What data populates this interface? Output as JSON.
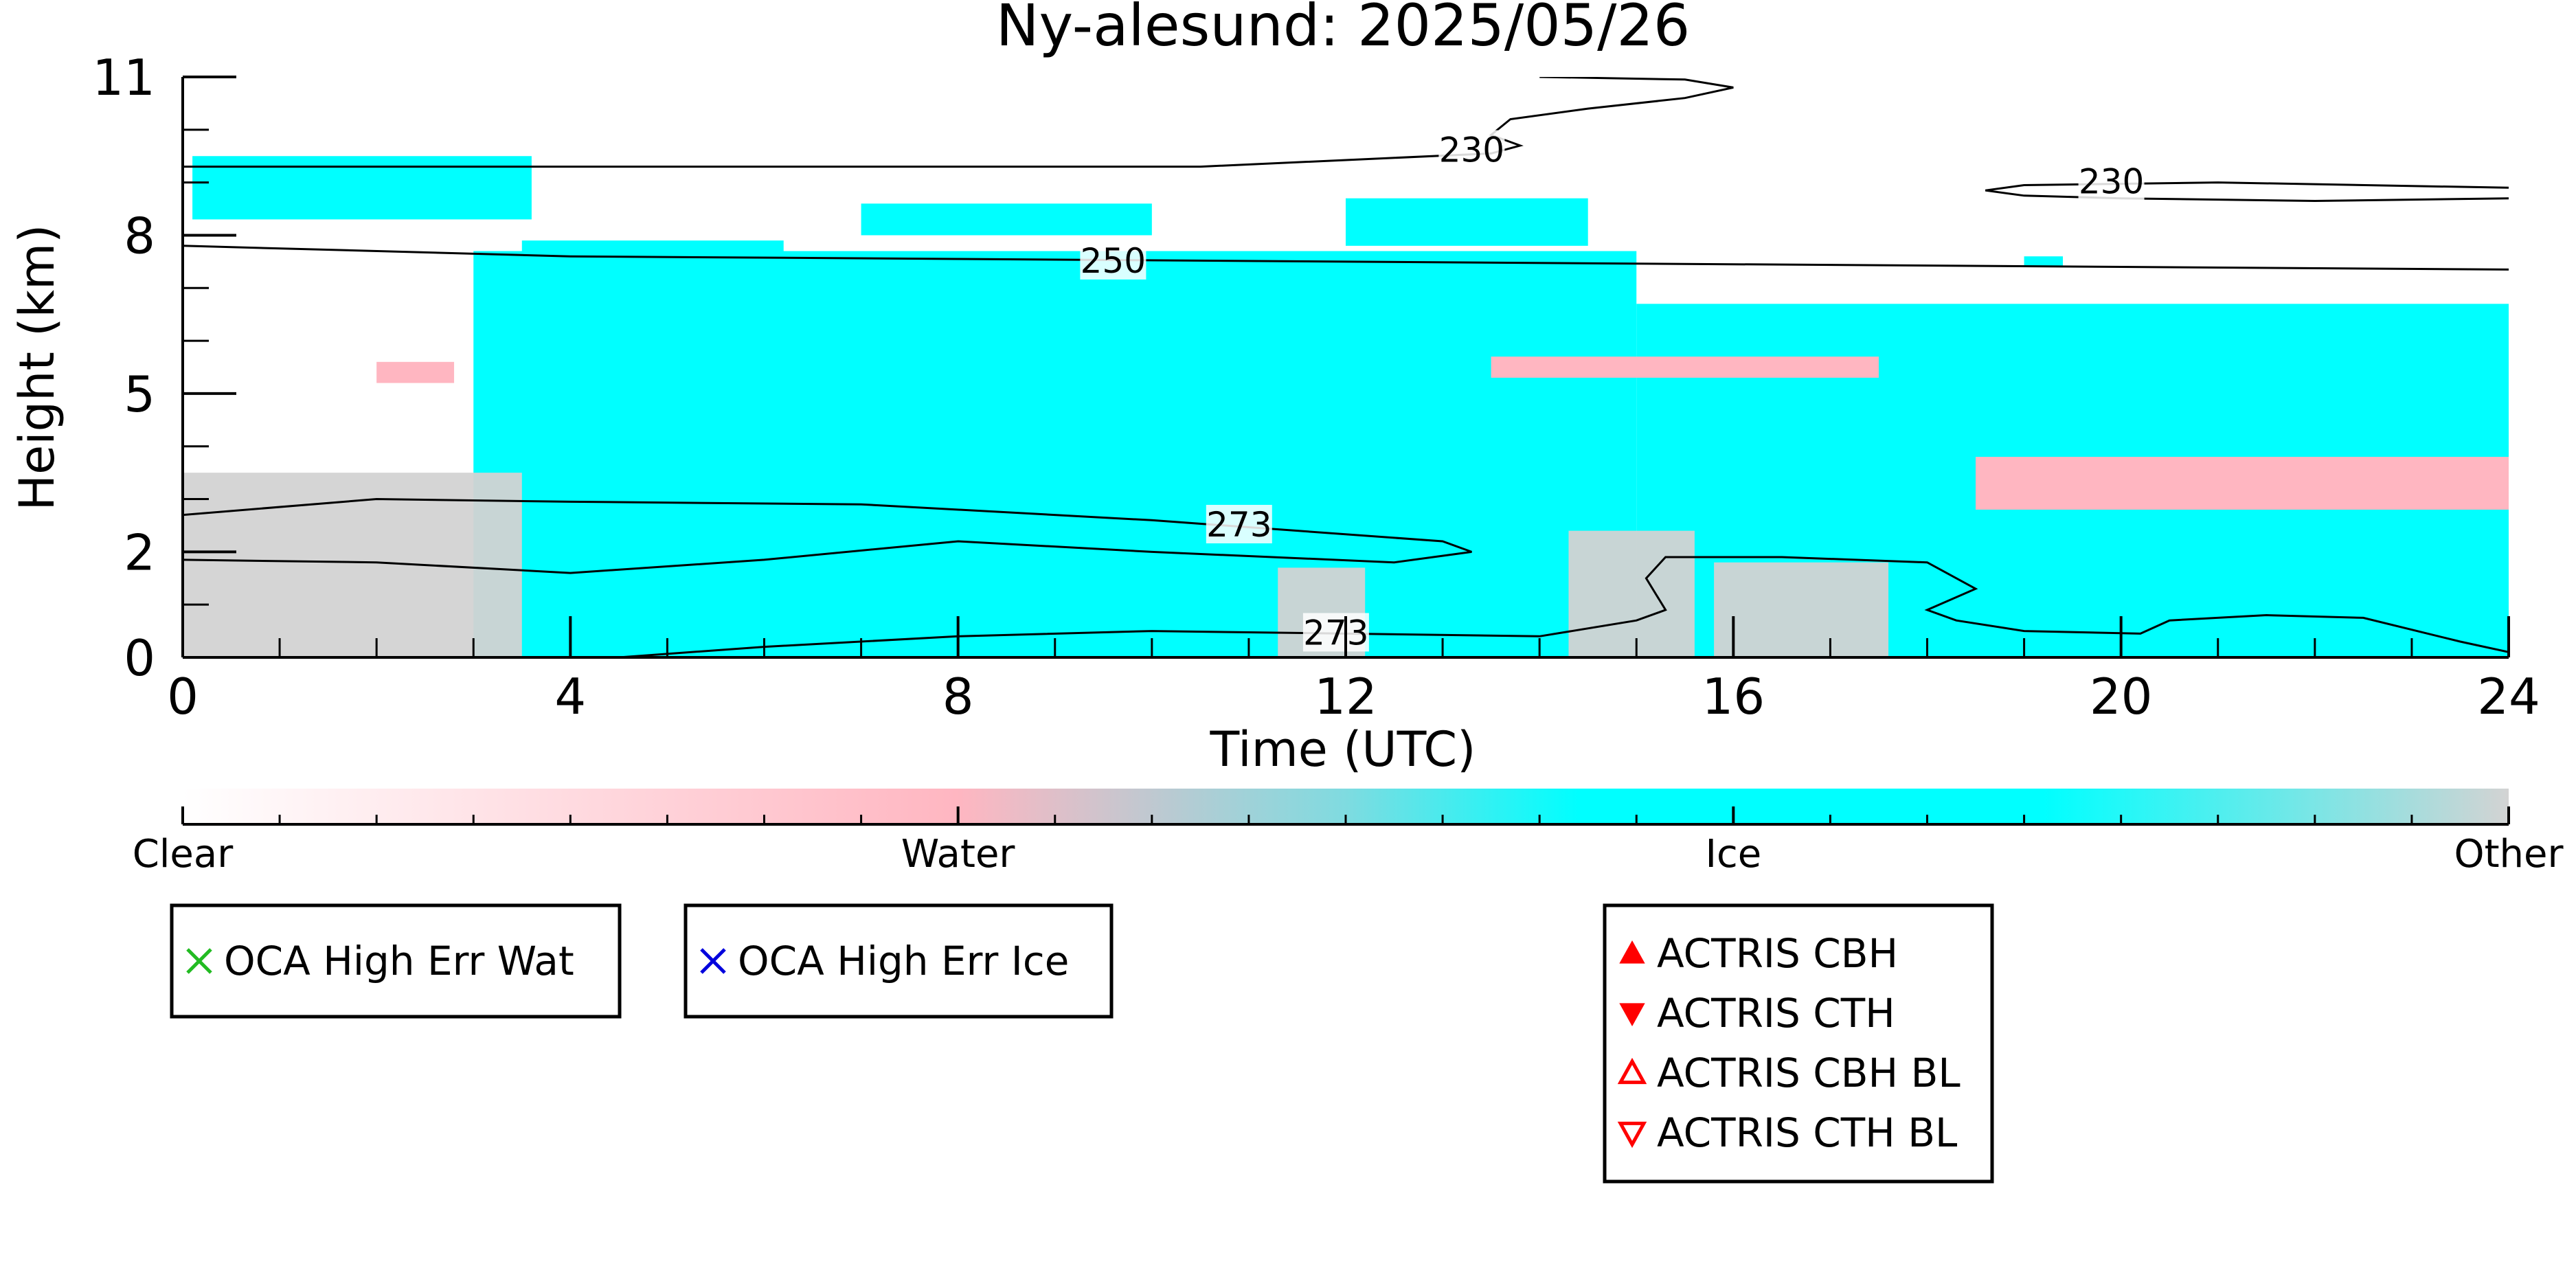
{
  "chart_data": {
    "type": "heatmap",
    "title": "Ny-alesund: 2025/05/26",
    "xlabel": "Time (UTC)",
    "ylabel": "Height (km)",
    "xlim": [
      0,
      24
    ],
    "ylim": [
      0,
      11
    ],
    "x_ticks": [
      {
        "value": 0,
        "label": "0"
      },
      {
        "value": 4,
        "label": "4"
      },
      {
        "value": 8,
        "label": "8"
      },
      {
        "value": 12,
        "label": "12"
      },
      {
        "value": 16,
        "label": "16"
      },
      {
        "value": 20,
        "label": "20"
      },
      {
        "value": 24,
        "label": "24"
      }
    ],
    "y_ticks": [
      {
        "value": 0,
        "label": "0"
      },
      {
        "value": 2,
        "label": "2"
      },
      {
        "value": 5,
        "label": "5"
      },
      {
        "value": 8,
        "label": "8"
      },
      {
        "value": 11,
        "label": "11"
      }
    ],
    "categories": [
      "Clear",
      "Water",
      "Ice",
      "Other"
    ],
    "colors": {
      "Clear": "#ffffff",
      "Water": "#ffb6c1",
      "Ice": "#00ffff",
      "Other": "#d3d3d3"
    },
    "cloud_regions": [
      {
        "class": "Ice",
        "x": [
          0.1,
          3.6
        ],
        "y": [
          8.3,
          9.5
        ]
      },
      {
        "class": "Ice",
        "x": [
          3.5,
          6.2
        ],
        "y": [
          7.6,
          7.9
        ]
      },
      {
        "class": "Ice",
        "x": [
          7.0,
          10.0
        ],
        "y": [
          8.0,
          8.6
        ]
      },
      {
        "class": "Ice",
        "x": [
          12.0,
          14.5
        ],
        "y": [
          7.8,
          8.7
        ]
      },
      {
        "class": "Ice",
        "x": [
          3.0,
          15.0
        ],
        "y": [
          0.0,
          7.7
        ]
      },
      {
        "class": "Ice",
        "x": [
          15.0,
          24.0
        ],
        "y": [
          0.0,
          6.7
        ]
      },
      {
        "class": "Ice",
        "x": [
          19.0,
          19.4
        ],
        "y": [
          7.4,
          7.6
        ]
      },
      {
        "class": "Water",
        "x": [
          13.5,
          17.5
        ],
        "y": [
          5.3,
          5.7
        ]
      },
      {
        "class": "Water",
        "x": [
          18.5,
          24.0
        ],
        "y": [
          2.8,
          3.8
        ]
      },
      {
        "class": "Water",
        "x": [
          2.0,
          2.8
        ],
        "y": [
          5.2,
          5.6
        ]
      },
      {
        "class": "Other",
        "x": [
          0.0,
          3.5
        ],
        "y": [
          0.0,
          3.5
        ]
      },
      {
        "class": "Other",
        "x": [
          14.3,
          15.6
        ],
        "y": [
          0.0,
          2.4
        ]
      },
      {
        "class": "Other",
        "x": [
          15.8,
          17.6
        ],
        "y": [
          0.0,
          1.8
        ]
      },
      {
        "class": "Other",
        "x": [
          11.3,
          12.2
        ],
        "y": [
          0.0,
          1.7
        ]
      }
    ],
    "temperature_contours": [
      {
        "label": "230",
        "label_at": [
          13.3,
          9.6
        ],
        "points": [
          [
            0,
            9.3
          ],
          [
            4,
            9.3
          ],
          [
            8,
            9.3
          ],
          [
            10.5,
            9.3
          ],
          [
            13.5,
            9.55
          ],
          [
            13.8,
            9.7
          ],
          [
            13.5,
            9.9
          ],
          [
            13.7,
            10.2
          ],
          [
            14.5,
            10.4
          ],
          [
            15.5,
            10.6
          ],
          [
            16.0,
            10.8
          ],
          [
            15.5,
            10.95
          ],
          [
            14,
            11.0
          ]
        ]
      },
      {
        "label": "230",
        "label_at": [
          19.9,
          9.0
        ],
        "points": [
          [
            24,
            8.7
          ],
          [
            22,
            8.65
          ],
          [
            20,
            8.7
          ],
          [
            19,
            8.75
          ],
          [
            18.6,
            8.85
          ],
          [
            19,
            8.95
          ],
          [
            21,
            9.0
          ],
          [
            24,
            8.9
          ]
        ]
      },
      {
        "label": "250",
        "label_at": [
          9.6,
          7.5
        ],
        "points": [
          [
            0,
            7.8
          ],
          [
            4,
            7.6
          ],
          [
            8,
            7.55
          ],
          [
            12,
            7.5
          ],
          [
            16,
            7.45
          ],
          [
            20,
            7.4
          ],
          [
            24,
            7.35
          ]
        ]
      },
      {
        "label": "273",
        "label_at": [
          10.9,
          2.5
        ],
        "points": [
          [
            0,
            2.7
          ],
          [
            2,
            3.0
          ],
          [
            4,
            2.95
          ],
          [
            7,
            2.9
          ],
          [
            10,
            2.6
          ],
          [
            13,
            2.2
          ],
          [
            13.3,
            2.0
          ],
          [
            12.5,
            1.8
          ],
          [
            10,
            2.0
          ],
          [
            8,
            2.2
          ],
          [
            6,
            1.85
          ],
          [
            4,
            1.6
          ],
          [
            2,
            1.8
          ],
          [
            0,
            1.85
          ]
        ]
      },
      {
        "label": "273",
        "label_at": [
          11.9,
          0.45
        ],
        "points": [
          [
            4.5,
            0.0
          ],
          [
            6,
            0.2
          ],
          [
            8,
            0.4
          ],
          [
            10,
            0.5
          ],
          [
            12,
            0.45
          ],
          [
            14,
            0.4
          ],
          [
            15,
            0.7
          ],
          [
            15.3,
            0.9
          ],
          [
            15.1,
            1.5
          ],
          [
            15.3,
            1.9
          ],
          [
            16.5,
            1.9
          ],
          [
            18,
            1.8
          ],
          [
            18.5,
            1.3
          ],
          [
            18.0,
            0.9
          ],
          [
            18.3,
            0.7
          ],
          [
            19.0,
            0.5
          ],
          [
            20.2,
            0.45
          ],
          [
            20.5,
            0.7
          ],
          [
            21.5,
            0.8
          ],
          [
            22.5,
            0.75
          ],
          [
            23.5,
            0.3
          ],
          [
            24,
            0.1
          ]
        ]
      }
    ],
    "colorbar": {
      "tick_labels": [
        {
          "value": 0,
          "label": "Clear"
        },
        {
          "value": 1,
          "label": "Water"
        },
        {
          "value": 2,
          "label": "Ice"
        },
        {
          "value": 3,
          "label": "Other"
        }
      ],
      "gradient": [
        "#ffffff",
        "#ffb6c1",
        "#00ffff",
        "#00ffff",
        "#d3d3d3"
      ]
    },
    "legends": [
      {
        "entries": [
          {
            "label": "OCA High Err Wat",
            "marker": "x",
            "color": "#22bb22"
          }
        ]
      },
      {
        "entries": [
          {
            "label": "OCA High Err Ice",
            "marker": "x",
            "color": "#0000dd"
          }
        ]
      },
      {
        "entries": [
          {
            "label": "ACTRIS CBH",
            "marker": "triangle-up",
            "color": "#ff0000"
          },
          {
            "label": "ACTRIS CTH",
            "marker": "triangle-down",
            "color": "#ff0000"
          },
          {
            "label": "ACTRIS CBH BL",
            "marker": "triangle-up-open",
            "color": "#ff0000"
          },
          {
            "label": "ACTRIS CTH BL",
            "marker": "triangle-down-open",
            "color": "#ff0000"
          }
        ]
      }
    ]
  }
}
